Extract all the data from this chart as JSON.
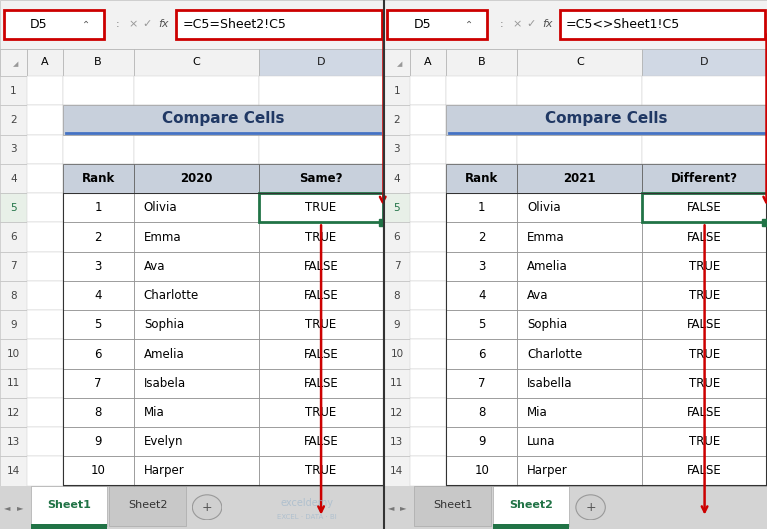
{
  "left_panel": {
    "formula_box": "D5",
    "formula_text": "=C5=Sheet2!C5",
    "title": "Compare Cells",
    "headers": [
      "Rank",
      "2020",
      "Same?"
    ],
    "rows": [
      [
        1,
        "Olivia",
        "TRUE"
      ],
      [
        2,
        "Emma",
        "TRUE"
      ],
      [
        3,
        "Ava",
        "FALSE"
      ],
      [
        4,
        "Charlotte",
        "FALSE"
      ],
      [
        5,
        "Sophia",
        "TRUE"
      ],
      [
        6,
        "Amelia",
        "FALSE"
      ],
      [
        7,
        "Isabela",
        "FALSE"
      ],
      [
        8,
        "Mia",
        "TRUE"
      ],
      [
        9,
        "Evelyn",
        "FALSE"
      ],
      [
        10,
        "Harper",
        "TRUE"
      ]
    ],
    "col_letters": [
      "A",
      "B",
      "C",
      "D"
    ],
    "row_numbers": [
      1,
      2,
      3,
      4,
      5,
      6,
      7,
      8,
      9,
      10,
      11,
      12,
      13,
      14
    ],
    "sheet_tabs": [
      "Sheet1",
      "Sheet2"
    ],
    "active_tab": "Sheet1"
  },
  "right_panel": {
    "formula_box": "D5",
    "formula_text": "=C5<>Sheet1!C5",
    "title": "Compare Cells",
    "headers": [
      "Rank",
      "2021",
      "Different?"
    ],
    "rows": [
      [
        1,
        "Olivia",
        "FALSE"
      ],
      [
        2,
        "Emma",
        "FALSE"
      ],
      [
        3,
        "Amelia",
        "TRUE"
      ],
      [
        4,
        "Ava",
        "TRUE"
      ],
      [
        5,
        "Sophia",
        "FALSE"
      ],
      [
        6,
        "Charlotte",
        "TRUE"
      ],
      [
        7,
        "Isabella",
        "TRUE"
      ],
      [
        8,
        "Mia",
        "FALSE"
      ],
      [
        9,
        "Luna",
        "TRUE"
      ],
      [
        10,
        "Harper",
        "FALSE"
      ]
    ],
    "col_letters": [
      "A",
      "B",
      "C",
      "D"
    ],
    "row_numbers": [
      1,
      2,
      3,
      4,
      5,
      6,
      7,
      8,
      9,
      10,
      11,
      12,
      13,
      14
    ],
    "sheet_tabs": [
      "Sheet1",
      "Sheet2"
    ],
    "active_tab": "Sheet2"
  },
  "colors": {
    "header_bg": "#c8d0dc",
    "title_bg": "#c8d0dc",
    "title_underline": "#4472c4",
    "cell_bg": "#ffffff",
    "formula_box_border": "#cc0000",
    "arrow_color": "#cc0000",
    "active_col_d_bg": "#d0d8e4",
    "active_tab_color": "#217346",
    "row_num_bg": "#f2f2f2",
    "col_letter_bg": "#f2f2f2",
    "col_letter_d_bg": "#d0d8e4",
    "selected_cell_border": "#217346",
    "drag_handle": "#217346",
    "tab_bar_bg": "#d4d4d4",
    "title_text_color": "#203864"
  },
  "fig_width": 7.67,
  "fig_height": 5.29
}
